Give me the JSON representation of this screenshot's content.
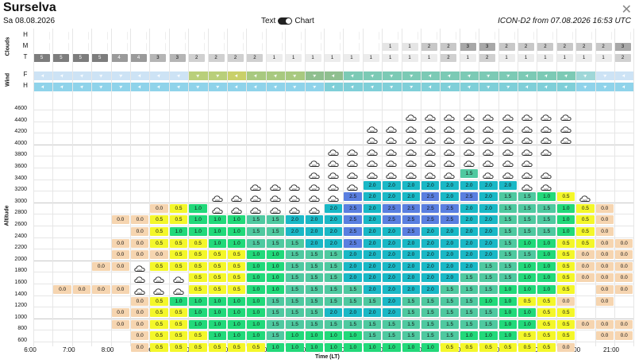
{
  "header": {
    "title": "Surselva",
    "date": "Sa 08.08.2026",
    "toggle_text": "Text",
    "toggle_chart": "Chart",
    "model_info": "ICON-D2 from 07.08.2026 16:53 UTC",
    "close_symbol": "✕"
  },
  "clouds": {
    "section_label": "Clouds",
    "row_labels": [
      "H",
      "M",
      "T"
    ],
    "H": [
      "",
      "",
      "",
      "",
      "",
      "",
      "",
      "",
      "",
      "",
      "",
      "",
      "",
      "",
      "",
      "",
      "",
      "",
      "",
      "",
      "",
      "",
      "",
      "",
      "",
      "",
      "",
      "",
      "",
      "",
      ""
    ],
    "M": [
      "",
      "",
      "",
      "",
      "",
      "",
      "",
      "",
      "",
      "",
      "",
      "",
      "",
      "",
      "",
      "",
      "",
      "",
      "1",
      "1",
      "2",
      "2",
      "3",
      "3",
      "2",
      "2",
      "2",
      "2",
      "2",
      "2",
      "3"
    ],
    "T": [
      "5",
      "5",
      "5",
      "5",
      "4",
      "4",
      "3",
      "3",
      "2",
      "2",
      "2",
      "2",
      "1",
      "1",
      "1",
      "1",
      "1",
      "1",
      "1",
      "1",
      "1",
      "2",
      "1",
      "2",
      "1",
      "1",
      "1",
      "1",
      "1",
      "1",
      "2"
    ]
  },
  "wind": {
    "section_label": "Wind",
    "row_labels": [
      "F",
      "H"
    ],
    "F_colors": [
      "#cde3f5",
      "#cde3f5",
      "#cde3f5",
      "#cde3f5",
      "#cde3f5",
      "#cde3f5",
      "#cde3f5",
      "#cde3f5",
      "#b9cf7a",
      "#b9cf7a",
      "#c9d06a",
      "#a8c980",
      "#a8c980",
      "#a8c980",
      "#8fbf8f",
      "#8fbf8f",
      "#7ccab5",
      "#7ccab5",
      "#7ccab5",
      "#7ccab5",
      "#7ccab5",
      "#7ccab5",
      "#7ccab5",
      "#7ccab5",
      "#7ccab5",
      "#7ccab5",
      "#7ccab5",
      "#7ccab5",
      "#9fd7d8",
      "#cde3f5",
      "#cde3f5"
    ],
    "H_colors": [
      "#8fd3ea",
      "#8fd3ea",
      "#8fd3ea",
      "#8fd3ea",
      "#8fd3ea",
      "#8fd3ea",
      "#8fd3ea",
      "#8fd3ea",
      "#8fd3ea",
      "#8fd3ea",
      "#8fd3ea",
      "#8fd3ea",
      "#8fd3ea",
      "#8fd3ea",
      "#8fd3ea",
      "#7fcfd8",
      "#7fcfd8",
      "#7fcfd8",
      "#7fcfd8",
      "#7fcfd8",
      "#7fcfd8",
      "#7fcfd8",
      "#7fcfd8",
      "#7fcfd8",
      "#7fcfd8",
      "#7fcfd8",
      "#7fcfd8",
      "#7fcfd8",
      "#8fd3ea",
      "#8fd3ea",
      "#8fd3ea"
    ],
    "arrow_symbol": "➤"
  },
  "chart_data": {
    "type": "heatmap",
    "ylabel": "Altitude",
    "xlabel": "Time (LT)",
    "y_ticks": [
      "4600",
      "4400",
      "4200",
      "4000",
      "3800",
      "3600",
      "3400",
      "3200",
      "3000",
      "2800",
      "2600",
      "2400",
      "2200",
      "2000",
      "1800",
      "1600",
      "1400",
      "1200",
      "1000",
      "800",
      "600"
    ],
    "x_ticks": [
      "6:00",
      "7:00",
      "8:00",
      "9:00",
      "10:00",
      "11:00",
      "12:00",
      "13:00",
      "14:00",
      "15:00",
      "16:00",
      "17:00",
      "18:00",
      "19:00",
      "20:00",
      "21:00"
    ],
    "colors": {
      "0.0": "#f6d5b0",
      "0.5": "#f4f72a",
      "1.0": "#22d97a",
      "1.5": "#4fc9a0",
      "2.0": "#1ab8c6",
      "2.5": "#5a7fe0",
      "cloud": "#ffffff"
    },
    "columns": [
      {
        "time": "6:30",
        "top": 1800,
        "values": [
          "0.0"
        ]
      },
      {
        "time": "7:00",
        "top": 1800,
        "values": [
          "0.0"
        ]
      },
      {
        "time": "7:30",
        "top": 1800,
        "values": [
          "0.0"
        ]
      },
      {
        "time": "8:00",
        "top": 2000,
        "values": [
          "0.0",
          "0.0"
        ]
      },
      {
        "time": "8:30",
        "top": 3000,
        "values": [
          "0.0",
          "0.0",
          "",
          "",
          "",
          "0.0",
          "0.0",
          "0.0",
          "0.0",
          "",
          ""
        ]
      },
      {
        "time": "9:00",
        "top": 3000,
        "values": [
          "0.0",
          "0.0",
          "0.0",
          "0.0",
          "0.0",
          "0.0",
          "0.0",
          "0.0",
          "0.0",
          "0.0",
          "",
          ""
        ]
      },
      {
        "time": "9:30",
        "top": 3200,
        "values": [
          "0.0",
          "0.5",
          "0.5",
          "0.5",
          "0.5",
          "0.5",
          "0.0",
          "c",
          "c",
          "c",
          "0.5",
          "0.5"
        ]
      },
      {
        "time": "10:00",
        "top": 3200,
        "values": [
          "0.5",
          "1.0",
          "1.0",
          "0.5",
          "0.5",
          "0.5",
          "0.5",
          "c",
          "c",
          "c",
          "0.5",
          "0.5"
        ]
      },
      {
        "time": "10:30",
        "top": 3400,
        "values": [
          "c",
          "1.0",
          "1.0",
          "1.0",
          "1.0",
          "1.0",
          "0.5",
          "0.5",
          "0.5",
          "0.5",
          "1.0",
          "1.0",
          "0.5"
        ]
      },
      {
        "time": "11:00",
        "top": 3400,
        "values": [
          "c",
          "1.0",
          "1.0",
          "1.0",
          "1.0",
          "1.0",
          "1.0",
          "0.5",
          "0.5",
          "1.0",
          "1.0",
          "1.0",
          "0.5"
        ]
      }
    ]
  },
  "grid_rows": [
    [
      "",
      "",
      "",
      "",
      "",
      "",
      "",
      "",
      "",
      "",
      "",
      "",
      "",
      "",
      "",
      "",
      "",
      "",
      "",
      "c",
      "c",
      "c",
      "c",
      "c",
      "c",
      "c",
      "c",
      "c",
      "",
      "",
      ""
    ],
    [
      "",
      "",
      "",
      "",
      "",
      "",
      "",
      "",
      "",
      "",
      "",
      "",
      "",
      "",
      "",
      "",
      "",
      "c",
      "c",
      "c",
      "c",
      "c",
      "c",
      "c",
      "c",
      "c",
      "c",
      "c",
      "",
      "",
      ""
    ],
    [
      "",
      "",
      "",
      "",
      "",
      "",
      "",
      "",
      "",
      "",
      "",
      "",
      "",
      "",
      "",
      "",
      "",
      "c",
      "c",
      "c",
      "c",
      "c",
      "c",
      "c",
      "c",
      "c",
      "c",
      "c",
      "",
      "",
      ""
    ],
    [
      "",
      "",
      "",
      "",
      "",
      "",
      "",
      "",
      "",
      "",
      "",
      "",
      "",
      "",
      "",
      "c",
      "c",
      "c",
      "c",
      "c",
      "c",
      "c",
      "c",
      "c",
      "c",
      "c",
      "c",
      "",
      "",
      "",
      ""
    ],
    [
      "",
      "",
      "",
      "",
      "",
      "",
      "",
      "",
      "",
      "",
      "",
      "",
      "",
      "",
      "c",
      "c",
      "c",
      "c",
      "c",
      "c",
      "c",
      "c",
      "c",
      "c",
      "c",
      "c",
      "",
      "",
      "",
      "",
      ""
    ],
    [
      "",
      "",
      "",
      "",
      "",
      "",
      "",
      "",
      "",
      "",
      "",
      "",
      "",
      "",
      "c",
      "c",
      "c",
      "c",
      "c",
      "c",
      "c",
      "c",
      "1.5",
      "c",
      "c",
      "c",
      "c",
      "",
      "",
      "",
      ""
    ],
    [
      "",
      "",
      "",
      "",
      "",
      "",
      "",
      "",
      "",
      "",
      "",
      "c",
      "c",
      "c",
      "c",
      "c",
      "c",
      "2.0",
      "2.0",
      "2.0",
      "2.0",
      "2.0",
      "2.0",
      "2.0",
      "2.0",
      "c",
      "c",
      "",
      "",
      "",
      ""
    ],
    [
      "",
      "",
      "",
      "",
      "",
      "",
      "",
      "",
      "",
      "c",
      "c",
      "c",
      "c",
      "c",
      "c",
      "c",
      "2.5",
      "2.0",
      "2.0",
      "2.0",
      "2.5",
      "2.0",
      "2.5",
      "2.0",
      "1.5",
      "1.5",
      "1.0",
      "0.5",
      "c",
      "",
      ""
    ],
    [
      "",
      "",
      "",
      "",
      "",
      "",
      "0.0",
      "0.5",
      "1.0",
      "c",
      "c",
      "c",
      "c",
      "c",
      "c",
      "2.0",
      "2.5",
      "2.0",
      "2.5",
      "2.5",
      "2.5",
      "2.5",
      "2.0",
      "2.0",
      "1.5",
      "1.5",
      "1.5",
      "1.0",
      "0.5",
      "0.0",
      ""
    ],
    [
      "",
      "",
      "",
      "",
      "0.0",
      "0.0",
      "0.5",
      "0.5",
      "1.0",
      "1.0",
      "1.0",
      "1.5",
      "1.5",
      "2.0",
      "2.0",
      "2.0",
      "2.5",
      "2.0",
      "2.5",
      "2.5",
      "2.5",
      "2.5",
      "2.0",
      "2.0",
      "1.5",
      "1.5",
      "1.5",
      "1.0",
      "0.5",
      "0.0",
      ""
    ],
    [
      "",
      "",
      "",
      "",
      "",
      "0.0",
      "0.5",
      "1.0",
      "1.0",
      "1.0",
      "1.0",
      "1.5",
      "1.5",
      "2.0",
      "2.0",
      "2.0",
      "2.5",
      "2.0",
      "2.0",
      "2.5",
      "2.0",
      "2.0",
      "2.0",
      "2.0",
      "1.5",
      "1.5",
      "1.5",
      "1.0",
      "0.5",
      "0.0",
      ""
    ],
    [
      "",
      "",
      "",
      "",
      "0.0",
      "0.0",
      "0.5",
      "0.5",
      "0.5",
      "1.0",
      "1.0",
      "1.5",
      "1.5",
      "1.5",
      "2.0",
      "2.0",
      "2.5",
      "2.0",
      "2.0",
      "2.0",
      "2.0",
      "2.0",
      "2.0",
      "2.0",
      "1.5",
      "1.0",
      "1.0",
      "0.5",
      "0.5",
      "0.0",
      "0.0"
    ],
    [
      "",
      "",
      "",
      "",
      "0.0",
      "0.0",
      "0.0",
      "0.5",
      "0.5",
      "0.5",
      "0.5",
      "1.0",
      "1.0",
      "1.5",
      "1.5",
      "1.5",
      "2.0",
      "2.0",
      "2.0",
      "2.0",
      "2.0",
      "2.0",
      "2.0",
      "2.0",
      "1.5",
      "1.5",
      "1.0",
      "0.5",
      "0.0",
      "0.0",
      "0.0"
    ],
    [
      "",
      "",
      "",
      "0.0",
      "0.0",
      "c",
      "0.5",
      "0.5",
      "0.5",
      "0.5",
      "0.5",
      "1.0",
      "1.0",
      "1.5",
      "1.5",
      "1.5",
      "2.0",
      "2.0",
      "2.0",
      "2.0",
      "2.0",
      "2.0",
      "2.0",
      "1.5",
      "1.5",
      "1.0",
      "1.0",
      "0.5",
      "0.0",
      "0.0",
      "0.0"
    ],
    [
      "",
      "",
      "",
      "",
      "",
      "c",
      "c",
      "c",
      "0.5",
      "0.5",
      "0.5",
      "1.0",
      "1.0",
      "1.5",
      "1.5",
      "1.5",
      "2.0",
      "2.0",
      "2.0",
      "2.0",
      "2.0",
      "2.0",
      "1.5",
      "1.5",
      "1.5",
      "1.0",
      "1.0",
      "0.5",
      "0.0",
      "0.0",
      "0.0"
    ],
    [
      "",
      "0.0",
      "0.0",
      "0.0",
      "0.0",
      "c",
      "c",
      "c",
      "0.5",
      "0.5",
      "0.5",
      "1.0",
      "1.0",
      "1.5",
      "1.5",
      "1.5",
      "1.5",
      "2.0",
      "2.0",
      "2.0",
      "2.0",
      "1.5",
      "1.5",
      "1.5",
      "1.0",
      "1.0",
      "1.0",
      "0.5",
      "",
      "0.0",
      "0.0"
    ],
    [
      "",
      "",
      "",
      "",
      "",
      "0.0",
      "0.5",
      "1.0",
      "1.0",
      "1.0",
      "1.0",
      "1.0",
      "1.5",
      "1.5",
      "1.5",
      "1.5",
      "1.5",
      "1.5",
      "2.0",
      "1.5",
      "1.5",
      "1.5",
      "1.5",
      "1.0",
      "1.0",
      "0.5",
      "0.5",
      "0.0",
      "",
      "0.0",
      ""
    ],
    [
      "",
      "",
      "",
      "",
      "0.0",
      "0.0",
      "0.5",
      "0.5",
      "1.0",
      "1.0",
      "1.0",
      "1.0",
      "1.5",
      "1.5",
      "1.5",
      "2.0",
      "2.0",
      "2.0",
      "2.0",
      "1.5",
      "1.5",
      "1.5",
      "1.5",
      "1.5",
      "1.0",
      "1.0",
      "0.5",
      "0.5",
      "",
      "",
      ""
    ],
    [
      "",
      "",
      "",
      "",
      "0.0",
      "0.0",
      "0.5",
      "0.5",
      "1.0",
      "1.0",
      "1.0",
      "1.0",
      "1.5",
      "1.5",
      "1.5",
      "1.5",
      "1.5",
      "1.5",
      "1.5",
      "1.5",
      "1.5",
      "1.5",
      "1.5",
      "1.5",
      "1.0",
      "1.0",
      "0.5",
      "0.5",
      "0.0",
      "0.0",
      "0.0"
    ],
    [
      "",
      "",
      "",
      "",
      "",
      "0.0",
      "0.5",
      "0.5",
      "0.5",
      "1.0",
      "1.0",
      "1.0",
      "1.5",
      "1.0",
      "1.0",
      "1.0",
      "1.0",
      "1.5",
      "1.5",
      "1.5",
      "1.5",
      "1.5",
      "1.0",
      "1.0",
      "1.0",
      "0.5",
      "0.5",
      "0.5",
      "",
      "0.0",
      "0.0"
    ],
    [
      "",
      "",
      "",
      "",
      "",
      "0.0",
      "0.5",
      "0.5",
      "0.5",
      "0.5",
      "0.5",
      "0.5",
      "1.0",
      "1.0",
      "1.0",
      "1.0",
      "1.0",
      "1.0",
      "1.0",
      "1.0",
      "1.0",
      "0.5",
      "0.5",
      "0.5",
      "0.5",
      "0.5",
      "0.5",
      "0.0",
      "",
      "",
      ""
    ]
  ]
}
